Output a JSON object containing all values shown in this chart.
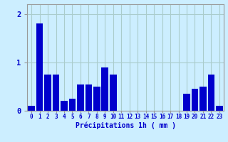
{
  "bar_values": [
    0.1,
    1.8,
    0.75,
    0.75,
    0.2,
    0.25,
    0.55,
    0.55,
    0.5,
    0.9,
    0.75,
    0.0,
    0.0,
    0.0,
    0.0,
    0.0,
    0.0,
    0.0,
    0.0,
    0.35,
    0.45,
    0.5,
    0.75,
    0.1
  ],
  "bar_color": "#0000cc",
  "bg_color": "#cceeff",
  "grid_color": "#aacccc",
  "xlabel": "Précipitations 1h ( mm )",
  "xlabel_color": "#0000cc",
  "tick_color": "#0000cc",
  "ylim": [
    0,
    2.2
  ],
  "yticks": [
    0,
    1,
    2
  ],
  "xlim": [
    -0.5,
    23.5
  ]
}
